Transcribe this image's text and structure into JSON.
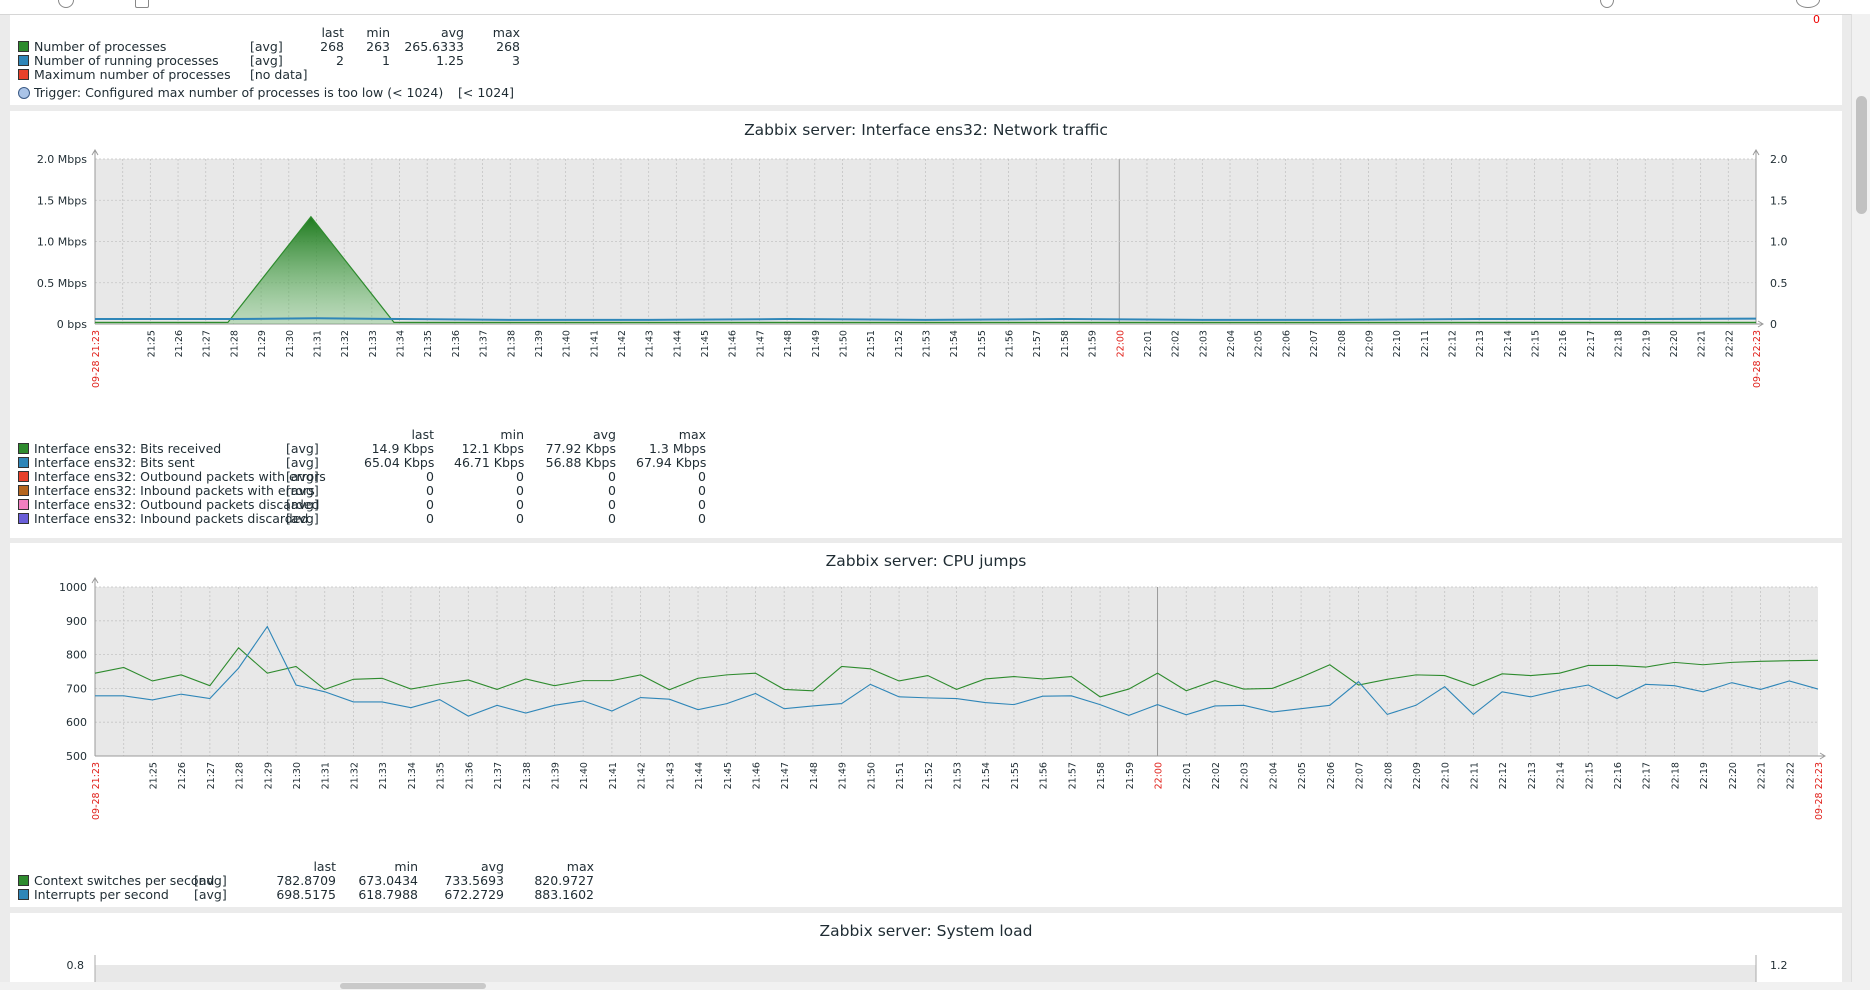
{
  "processes_panel": {
    "headers": [
      "last",
      "min",
      "avg",
      "max"
    ],
    "items": [
      {
        "color": "#2e8b2e",
        "name": "Number of processes",
        "func": "[avg]",
        "last": "268",
        "min": "263",
        "avg": "265.6333",
        "max": "268"
      },
      {
        "color": "#2f86b8",
        "name": "Number of running processes",
        "func": "[avg]",
        "last": "2",
        "min": "1",
        "avg": "1.25",
        "max": "3"
      },
      {
        "color": "#e8402a",
        "name": "Maximum number of processes",
        "func": "[no data]",
        "last": "",
        "min": "",
        "avg": "",
        "max": ""
      }
    ],
    "trigger": {
      "label": "Trigger: Configured max number of processes is too low (< 1024)",
      "value": "[< 1024]"
    }
  },
  "network_panel": {
    "title": "Zabbix server: Interface ens32: Network traffic",
    "headers": [
      "last",
      "min",
      "avg",
      "max"
    ],
    "items": [
      {
        "color": "#2e8b2e",
        "name": "Interface ens32: Bits received",
        "func": "[avg]",
        "last": "14.9 Kbps",
        "min": "12.1 Kbps",
        "avg": "77.92 Kbps",
        "max": "1.3 Mbps"
      },
      {
        "color": "#2f86b8",
        "name": "Interface ens32: Bits sent",
        "func": "[avg]",
        "last": "65.04 Kbps",
        "min": "46.71 Kbps",
        "avg": "56.88 Kbps",
        "max": "67.94 Kbps"
      },
      {
        "color": "#e8402a",
        "name": "Interface ens32: Outbound packets with errors",
        "func": "[avg]",
        "last": "0",
        "min": "0",
        "avg": "0",
        "max": "0"
      },
      {
        "color": "#b5651d",
        "name": "Interface ens32: Inbound packets with errors",
        "func": "[avg]",
        "last": "0",
        "min": "0",
        "avg": "0",
        "max": "0"
      },
      {
        "color": "#f07fc0",
        "name": "Interface ens32: Outbound packets discarded",
        "func": "[avg]",
        "last": "0",
        "min": "0",
        "avg": "0",
        "max": "0"
      },
      {
        "color": "#6a5ed8",
        "name": "Interface ens32: Inbound packets discarded",
        "func": "[avg]",
        "last": "0",
        "min": "0",
        "avg": "0",
        "max": "0"
      }
    ]
  },
  "cpu_panel": {
    "title": "Zabbix server: CPU jumps",
    "headers": [
      "last",
      "min",
      "avg",
      "max"
    ],
    "items": [
      {
        "color": "#2e8b2e",
        "name": "Context switches per second",
        "func": "[avg]",
        "last": "782.8709",
        "min": "673.0434",
        "avg": "733.5693",
        "max": "820.9727"
      },
      {
        "color": "#2f86b8",
        "name": "Interrupts per second",
        "func": "[avg]",
        "last": "698.5175",
        "min": "618.7988",
        "avg": "672.2729",
        "max": "883.1602"
      }
    ]
  },
  "load_panel": {
    "title": "Zabbix server: System load",
    "left_tick": "0.8",
    "right_tick": "1.2"
  },
  "chart_data": [
    {
      "type": "area",
      "title": "Zabbix server: Interface ens32: Network traffic",
      "x_start": "09-28 21:23",
      "x_end": "09-28 22:23",
      "x_ticks": [
        "21:25",
        "21:26",
        "21:27",
        "21:28",
        "21:29",
        "21:30",
        "21:31",
        "21:32",
        "21:33",
        "21:34",
        "21:35",
        "21:36",
        "21:37",
        "21:38",
        "21:39",
        "21:40",
        "21:41",
        "21:42",
        "21:43",
        "21:44",
        "21:45",
        "21:46",
        "21:47",
        "21:48",
        "21:49",
        "21:50",
        "21:51",
        "21:52",
        "21:53",
        "21:54",
        "21:55",
        "21:56",
        "21:57",
        "21:58",
        "21:59",
        "22:00",
        "22:01",
        "22:02",
        "22:03",
        "22:04",
        "22:05",
        "22:06",
        "22:07",
        "22:08",
        "22:09",
        "22:10",
        "22:11",
        "22:12",
        "22:13",
        "22:14",
        "22:15",
        "22:16",
        "22:17",
        "22:18",
        "22:19",
        "22:20",
        "22:21",
        "22:22"
      ],
      "y_ticks_left": [
        "0 bps",
        "0.5 Mbps",
        "1.0 Mbps",
        "1.5 Mbps",
        "2.0 Mbps"
      ],
      "y_ticks_right": [
        "0",
        "0.5",
        "1.0",
        "1.5",
        "2.0"
      ],
      "ylim": [
        0,
        2.0
      ],
      "unit": "Mbps",
      "series": [
        {
          "name": "Interface ens32: Bits received",
          "color": "#2e8b2e",
          "x": [
            0,
            4.8,
            7.8,
            10.8,
            60
          ],
          "values": [
            0.02,
            0.02,
            1.3,
            0.02,
            0.02
          ]
        },
        {
          "name": "Interface ens32: Bits sent",
          "color": "#2f86b8",
          "x": [
            0,
            5,
            8,
            11,
            15,
            20,
            25,
            30,
            35,
            40,
            45,
            50,
            55,
            60
          ],
          "values": [
            0.06,
            0.06,
            0.07,
            0.06,
            0.05,
            0.05,
            0.06,
            0.05,
            0.06,
            0.05,
            0.05,
            0.06,
            0.06,
            0.065
          ]
        }
      ]
    },
    {
      "type": "line",
      "title": "Zabbix server: CPU jumps",
      "x_start": "09-28 21:23",
      "x_end": "09-28 22:23",
      "x_ticks": [
        "21:25",
        "21:26",
        "21:27",
        "21:28",
        "21:29",
        "21:30",
        "21:31",
        "21:32",
        "21:33",
        "21:34",
        "21:35",
        "21:36",
        "21:37",
        "21:38",
        "21:39",
        "21:40",
        "21:41",
        "21:42",
        "21:43",
        "21:44",
        "21:45",
        "21:46",
        "21:47",
        "21:48",
        "21:49",
        "21:50",
        "21:51",
        "21:52",
        "21:53",
        "21:54",
        "21:55",
        "21:56",
        "21:57",
        "21:58",
        "21:59",
        "22:00",
        "22:01",
        "22:02",
        "22:03",
        "22:04",
        "22:05",
        "22:06",
        "22:07",
        "22:08",
        "22:09",
        "22:10",
        "22:11",
        "22:12",
        "22:13",
        "22:14",
        "22:15",
        "22:16",
        "22:17",
        "22:18",
        "22:19",
        "22:20",
        "22:21",
        "22:22"
      ],
      "y_ticks": [
        "500",
        "600",
        "700",
        "800",
        "900",
        "1000"
      ],
      "ylim": [
        500,
        1000
      ],
      "series": [
        {
          "name": "Context switches per second",
          "color": "#2e8b2e",
          "values": [
            745,
            762,
            722,
            740,
            708,
            820,
            745,
            765,
            697,
            727,
            730,
            698,
            713,
            725,
            697,
            728,
            708,
            723,
            723,
            740,
            696,
            730,
            740,
            745,
            697,
            693,
            765,
            758,
            722,
            738,
            697,
            728,
            735,
            728,
            735,
            675,
            698,
            745,
            693,
            723,
            698,
            700,
            733,
            770,
            710,
            727,
            740,
            738,
            708,
            743,
            738,
            745,
            768,
            768,
            763,
            777,
            770,
            777,
            780,
            782,
            783
          ]
        },
        {
          "name": "Interrupts per second",
          "color": "#2f86b8",
          "values": [
            678,
            678,
            666,
            683,
            670,
            760,
            883,
            710,
            690,
            660,
            660,
            643,
            667,
            618,
            650,
            627,
            650,
            663,
            633,
            673,
            668,
            637,
            655,
            685,
            640,
            648,
            655,
            712,
            675,
            672,
            670,
            658,
            652,
            677,
            678,
            652,
            620,
            652,
            622,
            648,
            650,
            630,
            640,
            650,
            720,
            623,
            650,
            705,
            623,
            690,
            675,
            695,
            710,
            670,
            712,
            708,
            690,
            717,
            697,
            722,
            698
          ]
        }
      ]
    }
  ]
}
